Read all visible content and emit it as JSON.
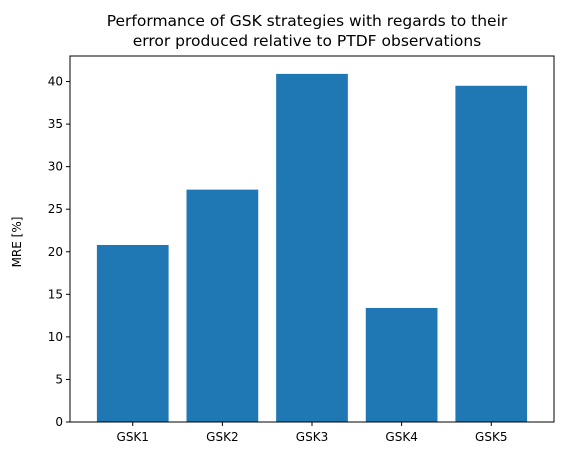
{
  "chart_data": {
    "type": "bar",
    "title_lines": [
      "Performance of GSK strategies with regards to their",
      "error produced relative to PTDF observations"
    ],
    "xlabel": "",
    "ylabel": "MRE [%]",
    "categories": [
      "GSK1",
      "GSK2",
      "GSK3",
      "GSK4",
      "GSK5"
    ],
    "values": [
      20.8,
      27.3,
      40.9,
      13.4,
      39.5
    ],
    "ylim": [
      0,
      43
    ],
    "yticks": [
      0,
      5,
      10,
      15,
      20,
      25,
      30,
      35,
      40
    ],
    "grid": false,
    "bar_color": "#1f77b4"
  }
}
